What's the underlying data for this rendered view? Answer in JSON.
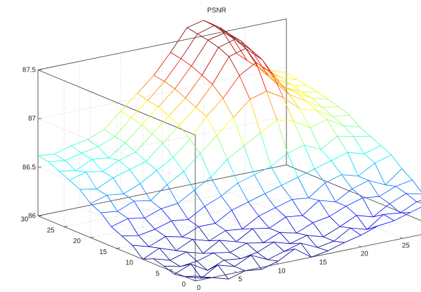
{
  "figure": {
    "background_color": "#ffffff",
    "axis_color": "#4a4a4a",
    "grid_color": "#c4c4c4",
    "text_color": "#222222"
  },
  "chart_data": {
    "type": "surface-mesh",
    "title": "PSNR",
    "xlabel": "",
    "ylabel": "",
    "zlabel": "",
    "grid": true,
    "colormap": "jet",
    "xlim": [
      0,
      30
    ],
    "ylim": [
      0,
      30
    ],
    "zlim": [
      86,
      87.5
    ],
    "xticks": [
      0,
      5,
      10,
      15,
      20,
      25,
      30
    ],
    "yticks": [
      0,
      5,
      10,
      15,
      20,
      25,
      30
    ],
    "zticks": [
      86,
      86.5,
      87,
      87.5
    ],
    "xtick_labels": [
      "0",
      "5",
      "10",
      "15",
      "20",
      "25",
      "30"
    ],
    "ytick_labels": [
      "0",
      "5",
      "10",
      "15",
      "20",
      "25",
      "30"
    ],
    "ztick_labels": [
      "86",
      "86.5",
      "87",
      "87.5"
    ],
    "mesh_x": [
      0,
      2,
      4,
      6,
      8,
      10,
      12,
      14,
      16,
      18,
      20,
      22,
      24,
      26,
      28,
      30
    ],
    "mesh_y": [
      0,
      2,
      4,
      6,
      8,
      10,
      12,
      14,
      16,
      18,
      20,
      22,
      24,
      26,
      28,
      30
    ],
    "z": [
      [
        86.05,
        86.0,
        85.95,
        86.0,
        85.98,
        86.03,
        86.12,
        86.0,
        86.03,
        86.08,
        86.12,
        86.18,
        86.2,
        86.25,
        86.3,
        86.32
      ],
      [
        86.0,
        85.95,
        86.05,
        86.0,
        86.08,
        86.0,
        86.05,
        86.1,
        86.02,
        86.05,
        86.15,
        86.1,
        86.22,
        86.2,
        86.28,
        86.3
      ],
      [
        85.98,
        86.05,
        85.95,
        86.02,
        86.0,
        86.03,
        86.1,
        86.05,
        86.1,
        86.05,
        86.12,
        86.2,
        86.15,
        86.25,
        86.32,
        86.28
      ],
      [
        86.02,
        85.98,
        86.0,
        86.05,
        86.02,
        86.08,
        86.05,
        86.12,
        86.08,
        86.15,
        86.18,
        86.25,
        86.3,
        86.28,
        86.35,
        86.38
      ],
      [
        86.05,
        86.0,
        86.05,
        86.0,
        86.1,
        86.05,
        86.15,
        86.12,
        86.2,
        86.18,
        86.3,
        86.25,
        86.35,
        86.4,
        86.32,
        86.45
      ],
      [
        86.0,
        86.08,
        86.02,
        86.1,
        86.05,
        86.12,
        86.1,
        86.2,
        86.25,
        86.3,
        86.28,
        86.4,
        86.45,
        86.4,
        86.5,
        86.55
      ],
      [
        86.1,
        86.05,
        86.12,
        86.08,
        86.15,
        86.15,
        86.25,
        86.3,
        86.35,
        86.4,
        86.45,
        86.5,
        86.55,
        86.6,
        86.55,
        86.6
      ],
      [
        86.15,
        86.12,
        86.15,
        86.2,
        86.18,
        86.28,
        86.35,
        86.45,
        86.5,
        86.55,
        86.65,
        86.7,
        86.62,
        86.72,
        86.68,
        86.65
      ],
      [
        86.2,
        86.25,
        86.22,
        86.28,
        86.3,
        86.4,
        86.5,
        86.65,
        86.75,
        86.85,
        86.95,
        86.9,
        86.8,
        86.85,
        86.75,
        86.7
      ],
      [
        86.3,
        86.28,
        86.35,
        86.32,
        86.45,
        86.55,
        86.7,
        86.85,
        87.0,
        87.15,
        87.2,
        87.1,
        86.95,
        86.9,
        86.8,
        86.78
      ],
      [
        86.35,
        86.4,
        86.38,
        86.45,
        86.55,
        86.65,
        86.8,
        87.0,
        87.15,
        87.35,
        87.45,
        87.3,
        87.05,
        86.95,
        86.85,
        86.82
      ],
      [
        86.45,
        86.42,
        86.5,
        86.55,
        86.6,
        86.75,
        86.9,
        87.05,
        87.25,
        87.5,
        87.55,
        87.4,
        87.1,
        87.0,
        86.9,
        86.85
      ],
      [
        86.5,
        86.55,
        86.52,
        86.6,
        86.65,
        86.8,
        86.95,
        87.1,
        87.3,
        87.55,
        87.6,
        87.45,
        87.15,
        87.0,
        86.92,
        86.88
      ],
      [
        86.55,
        86.52,
        86.6,
        86.58,
        86.7,
        86.85,
        87.0,
        87.15,
        87.35,
        87.58,
        87.62,
        87.5,
        87.2,
        87.05,
        86.95,
        86.9
      ],
      [
        86.6,
        86.58,
        86.62,
        86.65,
        86.72,
        86.88,
        87.02,
        87.18,
        87.38,
        87.6,
        87.65,
        87.52,
        87.22,
        87.08,
        86.98,
        86.92
      ],
      [
        86.62,
        86.6,
        86.65,
        86.68,
        86.75,
        86.9,
        87.05,
        87.2,
        87.4,
        87.62,
        87.66,
        87.55,
        87.25,
        87.1,
        87.0,
        86.95
      ]
    ]
  }
}
